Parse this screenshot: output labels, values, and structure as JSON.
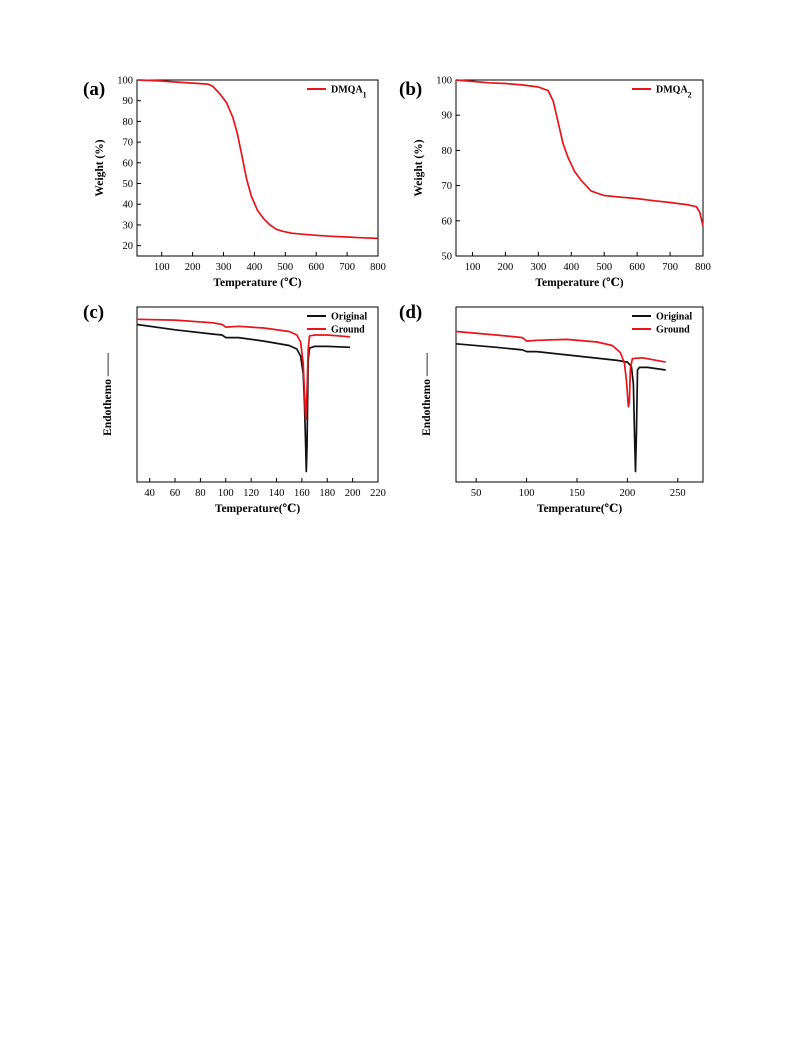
{
  "chart_data": [
    {
      "panel_label": "(a)",
      "type": "line",
      "xlabel": "Temperature (℃)",
      "ylabel": "Weight (%)",
      "xlim": [
        20,
        800
      ],
      "ylim": [
        15,
        100
      ],
      "xticks": [
        100,
        200,
        300,
        400,
        500,
        600,
        700,
        800
      ],
      "yticks": [
        20,
        30,
        40,
        50,
        60,
        70,
        80,
        90,
        100
      ],
      "legend_position": "top-right",
      "series": [
        {
          "name": "DMQA1",
          "color": "#e8141b",
          "x": [
            25,
            100,
            150,
            200,
            250,
            265,
            290,
            310,
            330,
            345,
            360,
            375,
            390,
            410,
            430,
            450,
            470,
            490,
            520,
            560,
            600,
            650,
            700,
            750,
            800
          ],
          "y": [
            100,
            99.5,
            99,
            98.5,
            98,
            97,
            93,
            89,
            82,
            74,
            63,
            52,
            44,
            37,
            33,
            30,
            28,
            27,
            26,
            25.5,
            25,
            24.5,
            24.2,
            23.8,
            23.5
          ]
        }
      ]
    },
    {
      "panel_label": "(b)",
      "type": "line",
      "xlabel": "Temperature (℃)",
      "ylabel": "Weight (%)",
      "xlim": [
        50,
        800
      ],
      "ylim": [
        50,
        100
      ],
      "xticks": [
        100,
        200,
        300,
        400,
        500,
        600,
        700,
        800
      ],
      "yticks": [
        50,
        60,
        70,
        80,
        90,
        100
      ],
      "legend_position": "top-right",
      "series": [
        {
          "name": "DMQA2",
          "color": "#e8141b",
          "x": [
            50,
            100,
            150,
            200,
            250,
            300,
            330,
            345,
            360,
            375,
            390,
            410,
            430,
            445,
            460,
            480,
            500,
            550,
            600,
            650,
            700,
            750,
            780,
            790,
            800
          ],
          "y": [
            100,
            99.6,
            99.2,
            99,
            98.6,
            98,
            97,
            94,
            88,
            82,
            78,
            74,
            71.5,
            70,
            68.5,
            67.8,
            67.2,
            66.7,
            66.3,
            65.7,
            65.2,
            64.6,
            64,
            62.5,
            58.5
          ]
        }
      ]
    },
    {
      "panel_label": "(c)",
      "type": "line",
      "xlabel": "Temperature(℃)",
      "ylabel": "Endothemo",
      "xlim": [
        30,
        220
      ],
      "ylim": [
        0,
        100
      ],
      "xticks": [
        40,
        60,
        80,
        100,
        120,
        140,
        160,
        180,
        200,
        220
      ],
      "legend_position": "top-right",
      "series": [
        {
          "name": "Original",
          "color": "#111111",
          "x": [
            30,
            60,
            90,
            97,
            100,
            110,
            130,
            150,
            156,
            159,
            161,
            162,
            163,
            163.5,
            164,
            165,
            166,
            170,
            180,
            198
          ],
          "y": [
            90,
            87,
            84.5,
            84,
            82.5,
            82.5,
            80.5,
            78,
            76,
            72,
            62,
            46,
            20,
            6,
            20,
            70,
            76.5,
            77.5,
            77.5,
            77
          ]
        },
        {
          "name": "Ground",
          "color": "#e8141b",
          "x": [
            30,
            60,
            90,
            97,
            100,
            110,
            130,
            150,
            156,
            159,
            161,
            162,
            163,
            164,
            165,
            166,
            170,
            180,
            198
          ],
          "y": [
            93,
            92.5,
            91,
            90,
            88.5,
            89,
            88,
            86,
            84,
            80,
            68,
            52,
            36,
            52,
            76,
            83.5,
            84,
            84,
            83
          ]
        }
      ]
    },
    {
      "panel_label": "(d)",
      "type": "line",
      "xlabel": "Temperature(℃)",
      "ylabel": "Endothemo",
      "xlim": [
        30,
        275
      ],
      "ylim": [
        0,
        100
      ],
      "xticks": [
        50,
        100,
        150,
        200,
        250
      ],
      "legend_position": "top-right",
      "series": [
        {
          "name": "Original",
          "color": "#111111",
          "x": [
            30,
            70,
            96,
            100,
            110,
            150,
            190,
            200,
            204,
            206,
            207,
            208,
            209,
            210,
            212,
            220,
            238
          ],
          "y": [
            79,
            77,
            75.5,
            74.5,
            74.5,
            72,
            69.5,
            68.5,
            66,
            56,
            30,
            6,
            30,
            64,
            65.5,
            65.5,
            64
          ]
        },
        {
          "name": "Ground",
          "color": "#e8141b",
          "x": [
            30,
            70,
            96,
            100,
            110,
            140,
            170,
            185,
            193,
            197,
            199,
            201,
            202,
            203,
            205,
            215,
            238
          ],
          "y": [
            86,
            84,
            82.5,
            80.5,
            81,
            81.5,
            80,
            78,
            74,
            68,
            58,
            43,
            46,
            65,
            70.5,
            71,
            68.5
          ]
        }
      ]
    }
  ]
}
